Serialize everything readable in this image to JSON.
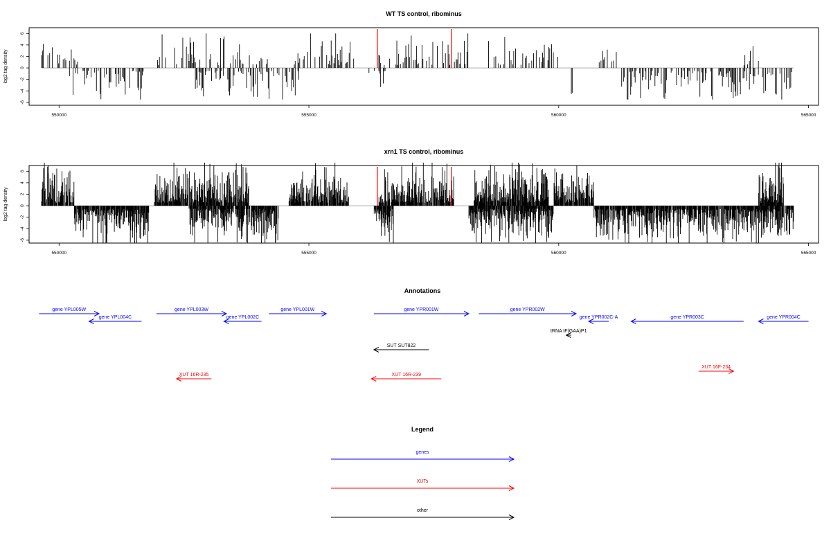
{
  "colors": {
    "genes": "#0000ff",
    "xuts": "#ff0000",
    "other": "#000000",
    "bars": "#000000",
    "marker": "#ff0000",
    "baseline": "#aaaaaa"
  },
  "chart_data": [
    {
      "type": "bar",
      "title": "WT TS control, ribominus",
      "ylabel": "log2 tag density",
      "xlim": [
        549400,
        565200
      ],
      "ylim": [
        -6.5,
        7
      ],
      "x_ticks": [
        550000,
        555000,
        560000,
        565000
      ],
      "y_ticks": [
        -6,
        -4,
        -2,
        0,
        2,
        4,
        6
      ],
      "grid": false,
      "marker_lines_x": [
        556370,
        557850
      ],
      "profile": {
        "x_start": 549650,
        "x_end": 564700,
        "positive_segments": [
          [
            549650,
            550400
          ],
          [
            551900,
            554200
          ],
          [
            554700,
            555900
          ],
          [
            556400,
            558200
          ],
          [
            558500,
            560000
          ],
          [
            560800,
            561200
          ],
          [
            563700,
            564000
          ]
        ],
        "positive_peak": 5,
        "negative_segments": [
          [
            550200,
            551700
          ],
          [
            552700,
            554800
          ],
          [
            556200,
            556600
          ],
          [
            560200,
            560300
          ],
          [
            561200,
            564700
          ]
        ],
        "negative_peak": 5
      }
    },
    {
      "type": "bar",
      "title": "xrn1 TS control, ribominus",
      "ylabel": "log2 tag density",
      "xlim": [
        549400,
        565200
      ],
      "ylim": [
        -6.5,
        7
      ],
      "x_ticks": [
        550000,
        555000,
        560000,
        565000
      ],
      "y_ticks": [
        -6,
        -4,
        -2,
        0,
        2,
        4,
        6
      ],
      "grid": false,
      "marker_lines_x": [
        556370,
        557850
      ],
      "profile": {
        "x_start": 549650,
        "x_end": 564700,
        "positive_segments": [
          [
            549650,
            550300
          ],
          [
            551900,
            553800
          ],
          [
            554600,
            555800
          ],
          [
            556400,
            557900
          ],
          [
            558300,
            559800
          ],
          [
            559900,
            560700
          ],
          [
            564000,
            564500
          ]
        ],
        "positive_peak": 6.5,
        "negative_segments": [
          [
            550300,
            551800
          ],
          [
            552600,
            554400
          ],
          [
            556300,
            556700
          ],
          [
            558200,
            559900
          ],
          [
            560700,
            564700
          ]
        ],
        "negative_peak": 6
      }
    }
  ],
  "annotations": {
    "title": "Annotations",
    "items": [
      {
        "label": "gene YPL005W",
        "start": 549600,
        "end": 550800,
        "row": 0,
        "strand": "+",
        "kind": "genes"
      },
      {
        "label": "gene YPL004C",
        "start": 550600,
        "end": 551650,
        "row": 1,
        "strand": "-",
        "kind": "genes"
      },
      {
        "label": "gene YPL003W",
        "start": 551950,
        "end": 553350,
        "row": 0,
        "strand": "+",
        "kind": "genes"
      },
      {
        "label": "gene YPL002C",
        "start": 553300,
        "end": 554050,
        "row": 1,
        "strand": "-",
        "kind": "genes"
      },
      {
        "label": "gene YPL001W",
        "start": 554200,
        "end": 555350,
        "row": 0,
        "strand": "+",
        "kind": "genes"
      },
      {
        "label": "gene YPR001W",
        "start": 556300,
        "end": 558200,
        "row": 0,
        "strand": "+",
        "kind": "genes"
      },
      {
        "label": "gene YPR002W",
        "start": 558400,
        "end": 560350,
        "row": 0,
        "strand": "+",
        "kind": "genes"
      },
      {
        "label": "gene YPR002C-A",
        "start": 560600,
        "end": 561000,
        "row": 1,
        "strand": "-",
        "kind": "genes"
      },
      {
        "label": "gene YPR003C",
        "start": 561450,
        "end": 563700,
        "row": 1,
        "strand": "-",
        "kind": "genes"
      },
      {
        "label": "gene YPR004C",
        "start": 564000,
        "end": 565000,
        "row": 1,
        "strand": "-",
        "kind": "genes"
      },
      {
        "label": "tRNA tF(GAA)P1",
        "start": 560150,
        "end": 560250,
        "row": 2,
        "strand": "-",
        "kind": "other"
      },
      {
        "label": "SUT SUT822",
        "start": 556300,
        "end": 557400,
        "row": 3,
        "strand": "-",
        "kind": "other"
      },
      {
        "label": "XUT 16R-235",
        "start": 552350,
        "end": 553050,
        "row": 4,
        "strand": "-",
        "kind": "xuts"
      },
      {
        "label": "XUT 16R-239",
        "start": 556250,
        "end": 557650,
        "row": 4,
        "strand": "-",
        "kind": "xuts"
      },
      {
        "label": "XUT 16F-234",
        "start": 562800,
        "end": 563500,
        "row": 5,
        "strand": "+",
        "kind": "xuts"
      }
    ]
  },
  "legend": {
    "title": "Legend",
    "entries": [
      {
        "label": "genes",
        "kind": "genes"
      },
      {
        "label": "XUTs",
        "kind": "xuts"
      },
      {
        "label": "other",
        "kind": "other"
      }
    ]
  }
}
